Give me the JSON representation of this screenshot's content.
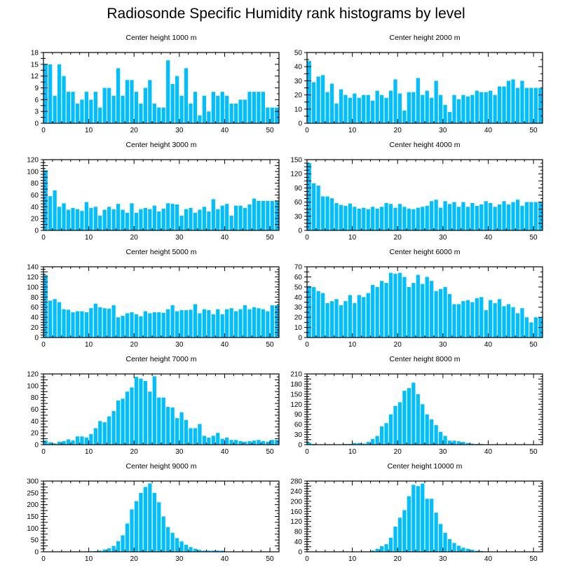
{
  "title": "Radiosonde Specific Humidity rank histograms by level",
  "colors": {
    "bar": "#00bfff",
    "axis": "#000000"
  },
  "chart_data": [
    {
      "type": "bar",
      "title": "Center height 1000 m",
      "x": [
        0,
        1,
        2,
        3,
        4,
        5,
        6,
        7,
        8,
        9,
        10,
        11,
        12,
        13,
        14,
        15,
        16,
        17,
        18,
        19,
        20,
        21,
        22,
        23,
        24,
        25,
        26,
        27,
        28,
        29,
        30,
        31,
        32,
        33,
        34,
        35,
        36,
        37,
        38,
        39,
        40,
        41,
        42,
        43,
        44,
        45,
        46,
        47,
        48,
        49,
        50,
        51
      ],
      "values": [
        15,
        15,
        7,
        15,
        12,
        8,
        8,
        5,
        6,
        8,
        6,
        8,
        4,
        9,
        9,
        7,
        14,
        7,
        11,
        11,
        8,
        5,
        9,
        11,
        5,
        4,
        4,
        16,
        10,
        12,
        7,
        14,
        5,
        8,
        2,
        7,
        3,
        8,
        7,
        8,
        7,
        5,
        5,
        6,
        6,
        8,
        8,
        8,
        8,
        4,
        4,
        4
      ],
      "xlim": [
        0,
        52
      ],
      "ylim": [
        0,
        18
      ],
      "xticks": [
        0,
        10,
        20,
        30,
        40,
        50
      ],
      "yticks": [
        0,
        3,
        6,
        9,
        12,
        15,
        18
      ],
      "ytick_side": "left"
    },
    {
      "type": "bar",
      "title": "Center height 2000 m",
      "x": [
        0,
        1,
        2,
        3,
        4,
        5,
        6,
        7,
        8,
        9,
        10,
        11,
        12,
        13,
        14,
        15,
        16,
        17,
        18,
        19,
        20,
        21,
        22,
        23,
        24,
        25,
        26,
        27,
        28,
        29,
        30,
        31,
        32,
        33,
        34,
        35,
        36,
        37,
        38,
        39,
        40,
        41,
        42,
        43,
        44,
        45,
        46,
        47,
        48,
        49,
        50,
        51
      ],
      "values": [
        44,
        29,
        33,
        34,
        22,
        28,
        14,
        24,
        20,
        18,
        21,
        18,
        20,
        20,
        16,
        23,
        20,
        18,
        23,
        31,
        21,
        9,
        22,
        22,
        32,
        20,
        23,
        18,
        30,
        20,
        13,
        8,
        20,
        17,
        20,
        19,
        20,
        23,
        22,
        22,
        23,
        20,
        26,
        26,
        30,
        31,
        25,
        30,
        25,
        25,
        25,
        25
      ],
      "xlim": [
        0,
        52
      ],
      "ylim": [
        0,
        50
      ],
      "xticks": [
        0,
        10,
        20,
        30,
        40,
        50
      ],
      "yticks": [
        0,
        10,
        20,
        30,
        40,
        50
      ],
      "ytick_side": "left"
    },
    {
      "type": "bar",
      "title": "Center height 3000 m",
      "x": [
        0,
        1,
        2,
        3,
        4,
        5,
        6,
        7,
        8,
        9,
        10,
        11,
        12,
        13,
        14,
        15,
        16,
        17,
        18,
        19,
        20,
        21,
        22,
        23,
        24,
        25,
        26,
        27,
        28,
        29,
        30,
        31,
        32,
        33,
        34,
        35,
        36,
        37,
        38,
        39,
        40,
        41,
        42,
        43,
        44,
        45,
        46,
        47,
        48,
        49,
        50,
        51
      ],
      "values": [
        102,
        58,
        68,
        40,
        46,
        35,
        38,
        36,
        33,
        48,
        38,
        40,
        25,
        35,
        40,
        36,
        45,
        35,
        30,
        46,
        30,
        36,
        38,
        36,
        42,
        32,
        37,
        46,
        45,
        44,
        25,
        36,
        38,
        30,
        35,
        40,
        32,
        53,
        36,
        42,
        45,
        25,
        42,
        42,
        38,
        44,
        54,
        50,
        50,
        50,
        50,
        50
      ],
      "xlim": [
        0,
        52
      ],
      "ylim": [
        0,
        120
      ],
      "xticks": [
        0,
        10,
        20,
        30,
        40,
        50
      ],
      "yticks": [
        0,
        10,
        20,
        30,
        40,
        50,
        60,
        70,
        80,
        90,
        100,
        110,
        120
      ],
      "ytick_labels": [
        "0",
        "",
        "20",
        "",
        "40",
        "",
        "60",
        "",
        "80",
        "",
        "100",
        "",
        "120"
      ],
      "ytick_side": "left"
    },
    {
      "type": "bar",
      "title": "Center height 4000 m",
      "x": [
        0,
        1,
        2,
        3,
        4,
        5,
        6,
        7,
        8,
        9,
        10,
        11,
        12,
        13,
        14,
        15,
        16,
        17,
        18,
        19,
        20,
        21,
        22,
        23,
        24,
        25,
        26,
        27,
        28,
        29,
        30,
        31,
        32,
        33,
        34,
        35,
        36,
        37,
        38,
        39,
        40,
        41,
        42,
        43,
        44,
        45,
        46,
        47,
        48,
        49,
        50,
        51
      ],
      "values": [
        143,
        100,
        95,
        72,
        72,
        68,
        58,
        54,
        52,
        57,
        50,
        46,
        48,
        45,
        50,
        46,
        50,
        58,
        56,
        48,
        56,
        50,
        46,
        45,
        48,
        50,
        52,
        62,
        65,
        48,
        62,
        56,
        60,
        50,
        60,
        50,
        58,
        52,
        55,
        62,
        58,
        50,
        55,
        62,
        55,
        60,
        65,
        52,
        60,
        60,
        60,
        60
      ],
      "xlim": [
        0,
        52
      ],
      "ylim": [
        0,
        150
      ],
      "xticks": [
        0,
        10,
        20,
        30,
        40,
        50
      ],
      "yticks": [
        0,
        15,
        30,
        45,
        60,
        75,
        90,
        105,
        120,
        135,
        150
      ],
      "ytick_labels": [
        "0",
        "",
        "30",
        "",
        "60",
        "",
        "90",
        "",
        "120",
        "",
        "150"
      ],
      "ytick_side": "left"
    },
    {
      "type": "bar",
      "title": "Center height 5000 m",
      "x": [
        0,
        1,
        2,
        3,
        4,
        5,
        6,
        7,
        8,
        9,
        10,
        11,
        12,
        13,
        14,
        15,
        16,
        17,
        18,
        19,
        20,
        21,
        22,
        23,
        24,
        25,
        26,
        27,
        28,
        29,
        30,
        31,
        32,
        33,
        34,
        35,
        36,
        37,
        38,
        39,
        40,
        41,
        42,
        43,
        44,
        45,
        46,
        47,
        48,
        49,
        50,
        51
      ],
      "values": [
        124,
        73,
        76,
        70,
        56,
        55,
        50,
        52,
        52,
        50,
        58,
        67,
        60,
        58,
        57,
        64,
        40,
        43,
        48,
        50,
        46,
        42,
        52,
        48,
        50,
        50,
        49,
        56,
        64,
        52,
        54,
        54,
        55,
        66,
        48,
        56,
        54,
        46,
        56,
        46,
        56,
        58,
        52,
        56,
        64,
        56,
        60,
        58,
        56,
        52,
        64,
        64
      ],
      "xlim": [
        0,
        52
      ],
      "ylim": [
        0,
        140
      ],
      "xticks": [
        0,
        10,
        20,
        30,
        40,
        50
      ],
      "yticks": [
        0,
        10,
        20,
        30,
        40,
        50,
        60,
        70,
        80,
        90,
        100,
        110,
        120,
        130,
        140
      ],
      "ytick_labels": [
        "0",
        "",
        "20",
        "",
        "40",
        "",
        "60",
        "",
        "80",
        "",
        "100",
        "",
        "120",
        "",
        "140"
      ],
      "ytick_side": "left"
    },
    {
      "type": "bar",
      "title": "Center height 6000 m",
      "x": [
        0,
        1,
        2,
        3,
        4,
        5,
        6,
        7,
        8,
        9,
        10,
        11,
        12,
        13,
        14,
        15,
        16,
        17,
        18,
        19,
        20,
        21,
        22,
        23,
        24,
        25,
        26,
        27,
        28,
        29,
        30,
        31,
        32,
        33,
        34,
        35,
        36,
        37,
        38,
        39,
        40,
        41,
        42,
        43,
        44,
        45,
        46,
        47,
        48,
        49,
        50,
        51
      ],
      "values": [
        51,
        50,
        46,
        44,
        34,
        36,
        38,
        32,
        36,
        42,
        34,
        42,
        40,
        44,
        52,
        50,
        56,
        54,
        64,
        63,
        64,
        60,
        50,
        54,
        62,
        53,
        60,
        56,
        46,
        48,
        50,
        43,
        33,
        33,
        36,
        37,
        35,
        39,
        40,
        27,
        37,
        34,
        38,
        31,
        33,
        30,
        24,
        29,
        20,
        15,
        20,
        20
      ],
      "xlim": [
        0,
        52
      ],
      "ylim": [
        0,
        70
      ],
      "xticks": [
        0,
        10,
        20,
        30,
        40,
        50
      ],
      "yticks": [
        0,
        10,
        20,
        30,
        40,
        50,
        60,
        70
      ],
      "ytick_side": "left"
    },
    {
      "type": "bar",
      "title": "Center height 7000 m",
      "x": [
        0,
        1,
        2,
        3,
        4,
        5,
        6,
        7,
        8,
        9,
        10,
        11,
        12,
        13,
        14,
        15,
        16,
        17,
        18,
        19,
        20,
        21,
        22,
        23,
        24,
        25,
        26,
        27,
        28,
        29,
        30,
        31,
        32,
        33,
        34,
        35,
        36,
        37,
        38,
        39,
        40,
        41,
        42,
        43,
        44,
        45,
        46,
        47,
        48,
        49,
        50,
        51
      ],
      "values": [
        7,
        4,
        2,
        5,
        6,
        9,
        7,
        14,
        14,
        12,
        18,
        28,
        40,
        38,
        48,
        57,
        75,
        78,
        90,
        97,
        115,
        112,
        108,
        90,
        116,
        80,
        80,
        64,
        63,
        45,
        55,
        42,
        28,
        28,
        35,
        15,
        12,
        15,
        20,
        10,
        12,
        8,
        8,
        6,
        5,
        6,
        7,
        8,
        6,
        5,
        8,
        8
      ],
      "xlim": [
        0,
        52
      ],
      "ylim": [
        0,
        120
      ],
      "xticks": [
        0,
        10,
        20,
        30,
        40,
        50
      ],
      "yticks": [
        0,
        10,
        20,
        30,
        40,
        50,
        60,
        70,
        80,
        90,
        100,
        110,
        120
      ],
      "ytick_labels": [
        "0",
        "",
        "20",
        "",
        "40",
        "",
        "60",
        "",
        "80",
        "",
        "100",
        "",
        "120"
      ],
      "ytick_side": "left"
    },
    {
      "type": "bar",
      "title": "Center height 8000 m",
      "x": [
        0,
        1,
        2,
        3,
        4,
        5,
        6,
        7,
        8,
        9,
        10,
        11,
        12,
        13,
        14,
        15,
        16,
        17,
        18,
        19,
        20,
        21,
        22,
        23,
        24,
        25,
        26,
        27,
        28,
        29,
        30,
        31,
        32,
        33,
        34,
        35,
        36,
        37,
        38,
        39,
        40,
        41,
        42,
        43,
        44,
        45,
        46,
        47,
        48,
        49,
        50,
        51
      ],
      "values": [
        6,
        2,
        0,
        0,
        0,
        0,
        0,
        1,
        2,
        2,
        5,
        5,
        3,
        8,
        17,
        26,
        54,
        64,
        90,
        115,
        126,
        160,
        168,
        184,
        150,
        120,
        90,
        75,
        58,
        38,
        26,
        12,
        12,
        10,
        8,
        5,
        3,
        2,
        2,
        1,
        1,
        1,
        1,
        1,
        1,
        1,
        1,
        1,
        1,
        1,
        1,
        1
      ],
      "xlim": [
        0,
        52
      ],
      "ylim": [
        0,
        210
      ],
      "xticks": [
        0,
        10,
        20,
        30,
        40,
        50
      ],
      "yticks": [
        0,
        15,
        30,
        45,
        60,
        75,
        90,
        105,
        120,
        135,
        150,
        165,
        180,
        195,
        210
      ],
      "ytick_labels": [
        "0",
        "",
        "30",
        "",
        "60",
        "",
        "90",
        "",
        "120",
        "",
        "150",
        "",
        "180",
        "",
        "210"
      ],
      "ytick_side": "left"
    },
    {
      "type": "bar",
      "title": "Center height 9000 m",
      "x": [
        0,
        1,
        2,
        3,
        4,
        5,
        6,
        7,
        8,
        9,
        10,
        11,
        12,
        13,
        14,
        15,
        16,
        17,
        18,
        19,
        20,
        21,
        22,
        23,
        24,
        25,
        26,
        27,
        28,
        29,
        30,
        31,
        32,
        33,
        34,
        35,
        36,
        37,
        38,
        39,
        40,
        41,
        42,
        43,
        44,
        45,
        46,
        47,
        48,
        49,
        50,
        51
      ],
      "values": [
        0,
        0,
        0,
        0,
        0,
        0,
        0,
        0,
        0,
        2,
        2,
        3,
        5,
        10,
        15,
        25,
        45,
        70,
        120,
        180,
        215,
        250,
        275,
        290,
        250,
        210,
        150,
        105,
        80,
        58,
        44,
        30,
        20,
        13,
        8,
        5,
        5,
        5,
        5,
        5,
        0,
        0,
        0,
        0,
        0,
        0,
        0,
        0,
        0,
        0,
        0,
        0
      ],
      "xlim": [
        0,
        52
      ],
      "ylim": [
        0,
        300
      ],
      "xticks": [
        0,
        10,
        20,
        30,
        40,
        50
      ],
      "yticks": [
        0,
        25,
        50,
        75,
        100,
        125,
        150,
        175,
        200,
        225,
        250,
        275,
        300
      ],
      "ytick_labels": [
        "0",
        "",
        "50",
        "",
        "100",
        "",
        "150",
        "",
        "200",
        "",
        "250",
        "",
        "300"
      ],
      "ytick_side": "left"
    },
    {
      "type": "bar",
      "title": "Center height 10000 m",
      "x": [
        0,
        1,
        2,
        3,
        4,
        5,
        6,
        7,
        8,
        9,
        10,
        11,
        12,
        13,
        14,
        15,
        16,
        17,
        18,
        19,
        20,
        21,
        22,
        23,
        24,
        25,
        26,
        27,
        28,
        29,
        30,
        31,
        32,
        33,
        34,
        35,
        36,
        37,
        38,
        39,
        40,
        41,
        42,
        43,
        44,
        45,
        46,
        47,
        48,
        49,
        50,
        51
      ],
      "values": [
        0,
        0,
        0,
        0,
        0,
        0,
        0,
        0,
        0,
        0,
        0,
        0,
        0,
        0,
        5,
        12,
        22,
        30,
        56,
        100,
        135,
        165,
        220,
        265,
        260,
        270,
        210,
        210,
        155,
        110,
        75,
        50,
        35,
        24,
        16,
        12,
        8,
        4,
        3,
        1,
        1,
        1,
        1,
        1,
        1,
        1,
        0,
        0,
        0,
        0,
        0,
        0
      ],
      "xlim": [
        0,
        52
      ],
      "ylim": [
        0,
        280
      ],
      "xticks": [
        0,
        10,
        20,
        30,
        40,
        50
      ],
      "yticks": [
        0,
        20,
        40,
        60,
        80,
        100,
        120,
        140,
        160,
        180,
        200,
        220,
        240,
        260,
        280
      ],
      "ytick_labels": [
        "0",
        "",
        "40",
        "",
        "80",
        "",
        "120",
        "",
        "160",
        "",
        "200",
        "",
        "240",
        "",
        "280"
      ],
      "ytick_side": "left"
    }
  ]
}
